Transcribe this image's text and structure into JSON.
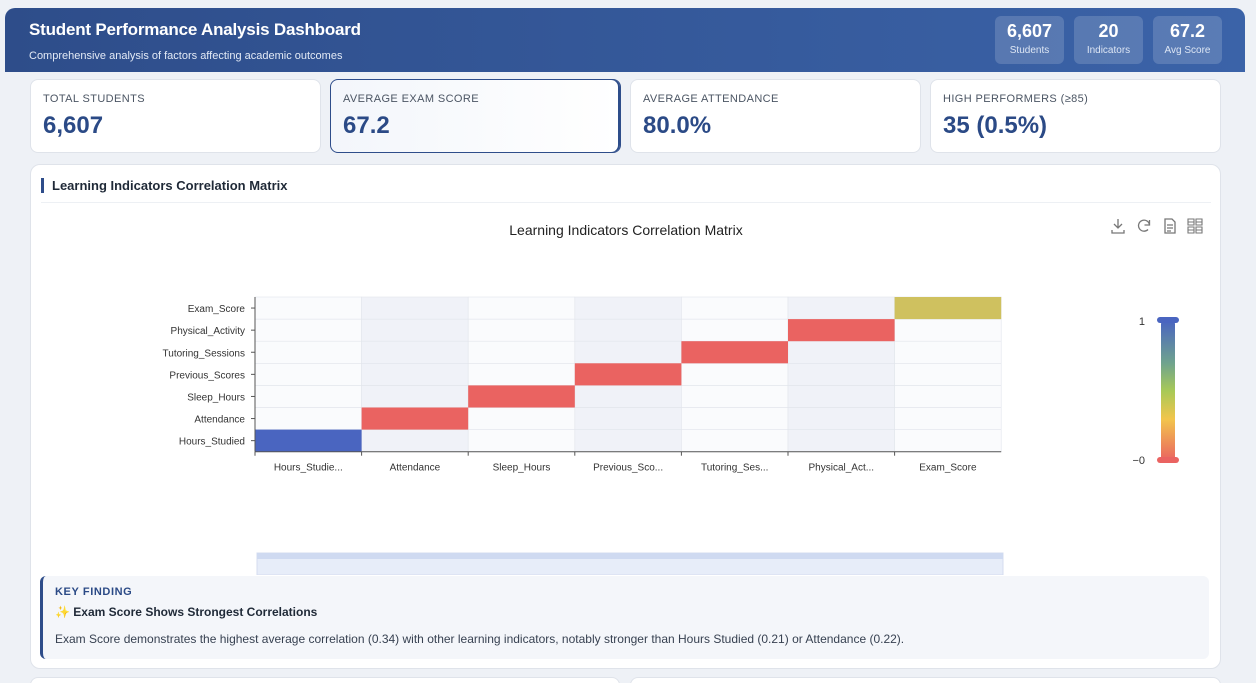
{
  "header": {
    "title": "Student Performance Analysis Dashboard",
    "subtitle": "Comprehensive analysis of factors affecting academic outcomes",
    "pills": [
      {
        "value": "6,607",
        "label": "Students"
      },
      {
        "value": "20",
        "label": "Indicators"
      },
      {
        "value": "67.2",
        "label": "Avg Score"
      }
    ]
  },
  "kpis": [
    {
      "label": "TOTAL STUDENTS",
      "value": "6,607"
    },
    {
      "label": "AVERAGE EXAM SCORE",
      "value": "67.2"
    },
    {
      "label": "AVERAGE ATTENDANCE",
      "value": "80.0%"
    },
    {
      "label": "HIGH PERFORMERS (≥85)",
      "value": "35 (0.5%)"
    }
  ],
  "panel": {
    "title": "Learning Indicators Correlation Matrix"
  },
  "toolbox": [
    "download-icon",
    "refresh-icon",
    "data-view-icon",
    "grid-icon"
  ],
  "chart_data": {
    "type": "heatmap",
    "title": "Learning Indicators Correlation Matrix",
    "x_labels": [
      "Hours_Studie...",
      "Attendance",
      "Sleep_Hours",
      "Previous_Sco...",
      "Tutoring_Ses...",
      "Physical_Act...",
      "Exam_Score"
    ],
    "y_labels": [
      "Hours_Studied",
      "Attendance",
      "Sleep_Hours",
      "Previous_Scores",
      "Tutoring_Sessions",
      "Physical_Activity",
      "Exam_Score"
    ],
    "cells": [
      {
        "x": 0,
        "y": 0,
        "value": 1.0
      },
      {
        "x": 1,
        "y": 1,
        "value": 1.0
      },
      {
        "x": 2,
        "y": 2,
        "value": 1.0
      },
      {
        "x": 3,
        "y": 3,
        "value": 1.0
      },
      {
        "x": 4,
        "y": 4,
        "value": 1.0
      },
      {
        "x": 5,
        "y": 5,
        "value": 1.0
      },
      {
        "x": 6,
        "y": 6,
        "value": 1.0
      }
    ],
    "visual_map": {
      "max_label": "1",
      "min_label": "−0"
    },
    "colors": {
      "diag": "#ea6361",
      "low": "#4a65c0",
      "top": "#cfc15f"
    }
  },
  "key_finding": {
    "label": "KEY FINDING",
    "heading": "✨ Exam Score Shows Strongest Correlations",
    "text": "Exam Score demonstrates the highest average correlation (0.34) with other learning indicators, notably stronger than Hours Studied (0.21) or Attendance (0.22)."
  }
}
